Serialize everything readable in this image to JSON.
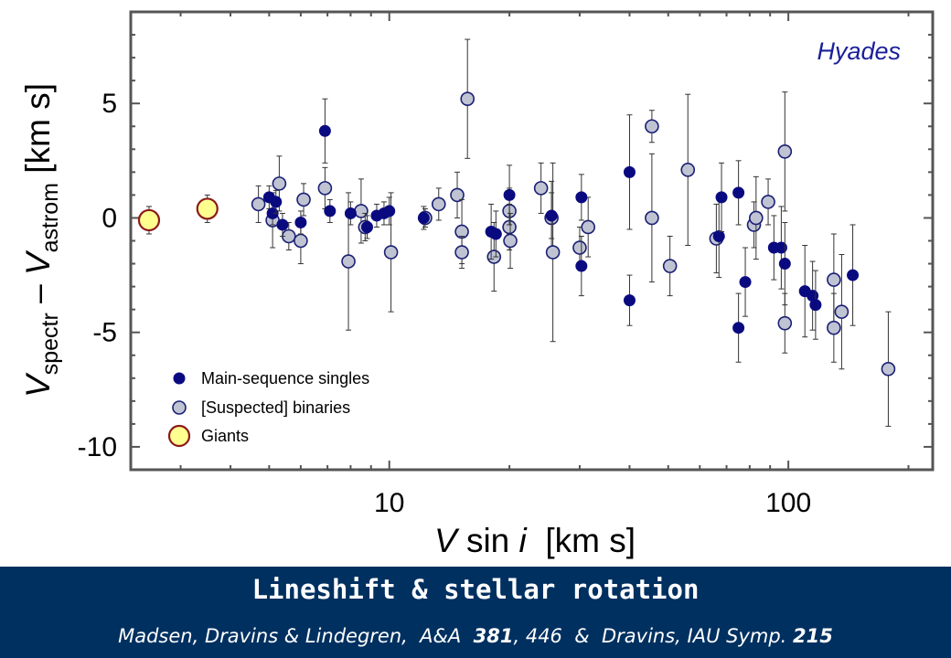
{
  "chart_data": {
    "type": "scatter",
    "annotation": "Hyades",
    "xscale": "log",
    "xlim": [
      2.25,
      230
    ],
    "ylim": [
      -11,
      9
    ],
    "xticks": [
      10,
      100
    ],
    "yticks": [
      5,
      0,
      -5,
      -10
    ],
    "ytick_labels": [
      "5",
      "0",
      "-5",
      "-10"
    ],
    "xtick_labels": [
      "10",
      "100"
    ],
    "xlabel": {
      "v": "V",
      "mid": " sin ",
      "i": "i",
      "unit": "  [km s]"
    },
    "ylabel": {
      "v1": "V",
      "sub1": "spectr",
      "dash": " – ",
      "v2": "V",
      "sub2": "astrom",
      "unit": " [km s]"
    },
    "legend": {
      "placement": "bottom-left",
      "entries": [
        "Main-sequence singles",
        "[Suspected] binaries",
        "Giants"
      ]
    },
    "colors": {
      "singles": "#0a0a80",
      "binaries_fill": "#c0c4d2",
      "binaries_edge": "#1a1f74",
      "giants_fill": "#ffff90",
      "giants_edge": "#8b1a1a",
      "annotation": "#1a1f9a",
      "error_bar": "#333333",
      "footer_bg": "#003060"
    },
    "series": [
      {
        "name": "Main-sequence singles",
        "points": [
          [
            5.0,
            0.9,
            0.5
          ],
          [
            5.1,
            0.2,
            0.5
          ],
          [
            5.2,
            0.7,
            0.5
          ],
          [
            5.4,
            -0.3,
            0.5
          ],
          [
            6.0,
            -0.2,
            0.5
          ],
          [
            6.9,
            3.8,
            1.4
          ],
          [
            7.1,
            0.3,
            0.5
          ],
          [
            8.0,
            0.2,
            0.5
          ],
          [
            8.8,
            -0.4,
            0.5
          ],
          [
            9.3,
            0.1,
            0.5
          ],
          [
            9.7,
            0.2,
            0.5
          ],
          [
            10.0,
            0.3,
            0.6
          ],
          [
            12.2,
            0.0,
            0.5
          ],
          [
            18.0,
            -0.6,
            1.2
          ],
          [
            18.5,
            -0.7,
            1.0
          ],
          [
            20.0,
            1.0,
            1.3
          ],
          [
            25.5,
            0.1,
            1.0
          ],
          [
            30.3,
            0.9,
            1.0
          ],
          [
            30.3,
            -2.1,
            1.3
          ],
          [
            40.0,
            2.0,
            2.5
          ],
          [
            40.0,
            -3.6,
            1.1
          ],
          [
            67.0,
            -0.8,
            1.8
          ],
          [
            68.0,
            0.9,
            1.5
          ],
          [
            75.0,
            1.1,
            1.4
          ],
          [
            75.0,
            -4.8,
            1.5
          ],
          [
            78.0,
            -2.8,
            1.5
          ],
          [
            92.0,
            -1.3,
            1.4
          ],
          [
            96.0,
            -1.3,
            1.8
          ],
          [
            98.0,
            -2.0,
            1.8
          ],
          [
            110.0,
            -3.2,
            2.0
          ],
          [
            115.0,
            -3.4,
            1.5
          ],
          [
            117.0,
            -3.8,
            1.5
          ],
          [
            145.0,
            -2.5,
            2.2
          ]
        ]
      },
      {
        "name": "[Suspected] binaries",
        "points": [
          [
            4.7,
            0.6,
            0.8
          ],
          [
            5.1,
            -0.1,
            1.2
          ],
          [
            5.3,
            1.5,
            1.2
          ],
          [
            5.6,
            -0.8,
            0.6
          ],
          [
            6.0,
            -1.0,
            1.0
          ],
          [
            6.1,
            0.8,
            0.7
          ],
          [
            6.9,
            1.3,
            0.9
          ],
          [
            7.9,
            -1.9,
            3.0
          ],
          [
            8.5,
            0.3,
            1.4
          ],
          [
            8.7,
            -0.4,
            0.6
          ],
          [
            10.1,
            -1.5,
            2.6
          ],
          [
            12.3,
            0.0,
            0.4
          ],
          [
            13.3,
            0.6,
            0.7
          ],
          [
            14.8,
            1.0,
            1.0
          ],
          [
            15.2,
            -0.6,
            1.4
          ],
          [
            15.2,
            -1.5,
            0.7
          ],
          [
            15.7,
            5.2,
            2.6
          ],
          [
            18.3,
            -1.7,
            1.5
          ],
          [
            20.0,
            0.3,
            1.0
          ],
          [
            20.0,
            -0.4,
            1.0
          ],
          [
            20.1,
            -1.0,
            1.2
          ],
          [
            24.0,
            1.3,
            1.1
          ],
          [
            25.5,
            0.0,
            1.6
          ],
          [
            25.7,
            -1.5,
            3.9
          ],
          [
            30.0,
            -1.3,
            0.9
          ],
          [
            31.5,
            -0.4,
            1.3
          ],
          [
            45.5,
            4.0,
            0.7
          ],
          [
            45.5,
            0.0,
            2.8
          ],
          [
            50.5,
            -2.1,
            1.3
          ],
          [
            56.0,
            2.1,
            3.3
          ],
          [
            66.0,
            -0.9,
            1.5
          ],
          [
            82.0,
            -0.3,
            1.0
          ],
          [
            83.0,
            0.0,
            1.8
          ],
          [
            89.0,
            0.7,
            1.0
          ],
          [
            98.0,
            2.9,
            2.6
          ],
          [
            98.0,
            -4.6,
            1.3
          ],
          [
            130.0,
            -2.7,
            2.0
          ],
          [
            130.0,
            -4.8,
            1.5
          ],
          [
            136.0,
            -4.1,
            2.5
          ],
          [
            178.0,
            -6.6,
            2.5
          ]
        ]
      },
      {
        "name": "Giants",
        "points": [
          [
            2.5,
            -0.1,
            0.6
          ],
          [
            3.5,
            0.4,
            0.6
          ]
        ]
      }
    ]
  },
  "footer": {
    "title": "Lineshift & stellar rotation",
    "citation_pre": "Madsen, Dravins & Lindegren,  A&A  ",
    "citation_vol": "381",
    "citation_mid": ", 446  &  Dravins, IAU Symp. ",
    "citation_num": "215"
  }
}
